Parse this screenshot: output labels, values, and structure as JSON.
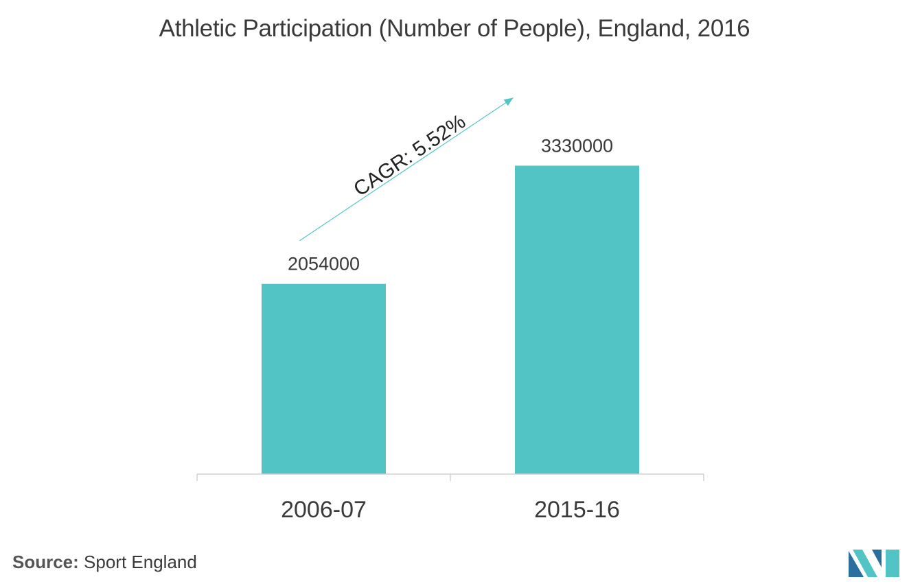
{
  "source": {
    "label": "Source:",
    "text": "Sport England"
  },
  "chart_data": {
    "type": "bar",
    "title": "Athletic Participation (Number of People), England, 2016",
    "xlabel": "",
    "ylabel": "",
    "categories": [
      "2006-07",
      "2015-16"
    ],
    "values": [
      2054000,
      3330000
    ],
    "data_labels": [
      "2054000",
      "3330000"
    ],
    "ylim": [
      0,
      3600000
    ],
    "grid": false,
    "legend": "none",
    "annotation": "CAGR: 5.52%",
    "colors": {
      "bar": "#52c4c6",
      "arrow": "#52c4c6",
      "axis": "#d0d0d0",
      "text": "#3a3a3a"
    }
  },
  "logo": {
    "icon": "mordor-intelligence-logo-icon",
    "colors": [
      "#2b6f9f",
      "#52c4c6"
    ]
  }
}
